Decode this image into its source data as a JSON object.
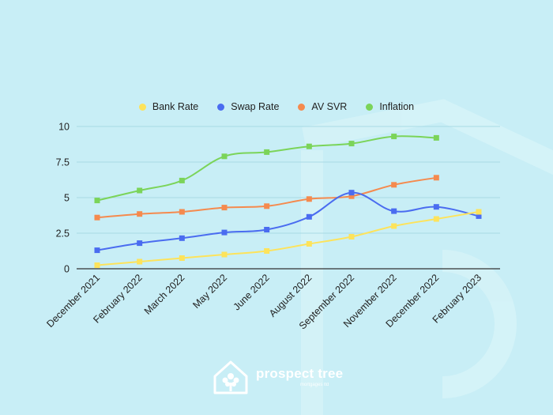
{
  "brand": {
    "name": "prospect tree",
    "tagline": "mortgages ltd"
  },
  "colors": {
    "background": "#c8eef6",
    "grid": "#a9dbe4",
    "axis": "#333333",
    "bank_rate": "#fde35b",
    "swap_rate": "#4a6cf0",
    "av_svr": "#f58a4e",
    "inflation": "#7bd459"
  },
  "chart_data": {
    "type": "line",
    "title": "",
    "xlabel": "",
    "ylabel": "",
    "ylim": [
      0,
      10
    ],
    "yticks": [
      0,
      2.5,
      5,
      7.5,
      10
    ],
    "ytick_labels": [
      "0",
      "2.5",
      "5",
      "7.5",
      "10"
    ],
    "grid": true,
    "legend": "top-center",
    "categories": [
      "December 2021",
      "February 2022",
      "March 2022",
      "May 2022",
      "June 2022",
      "August 2022",
      "September 2022",
      "November 2022",
      "December 2022",
      "February 2023"
    ],
    "series": [
      {
        "name": "Bank Rate",
        "color": "#fde35b",
        "values": [
          0.25,
          0.5,
          0.75,
          1.0,
          1.25,
          1.75,
          2.25,
          3.0,
          3.5,
          4.0
        ]
      },
      {
        "name": "Swap Rate",
        "color": "#4a6cf0",
        "values": [
          1.3,
          1.8,
          2.15,
          2.55,
          2.75,
          3.65,
          5.35,
          4.05,
          4.35,
          3.7
        ]
      },
      {
        "name": "AV SVR",
        "color": "#f58a4e",
        "values": [
          3.6,
          3.85,
          4.0,
          4.3,
          4.4,
          4.9,
          5.1,
          5.9,
          6.4,
          null
        ]
      },
      {
        "name": "Inflation",
        "color": "#7bd459",
        "values": [
          4.8,
          5.5,
          6.2,
          7.9,
          8.2,
          8.6,
          8.8,
          9.3,
          9.2,
          null
        ]
      }
    ]
  }
}
